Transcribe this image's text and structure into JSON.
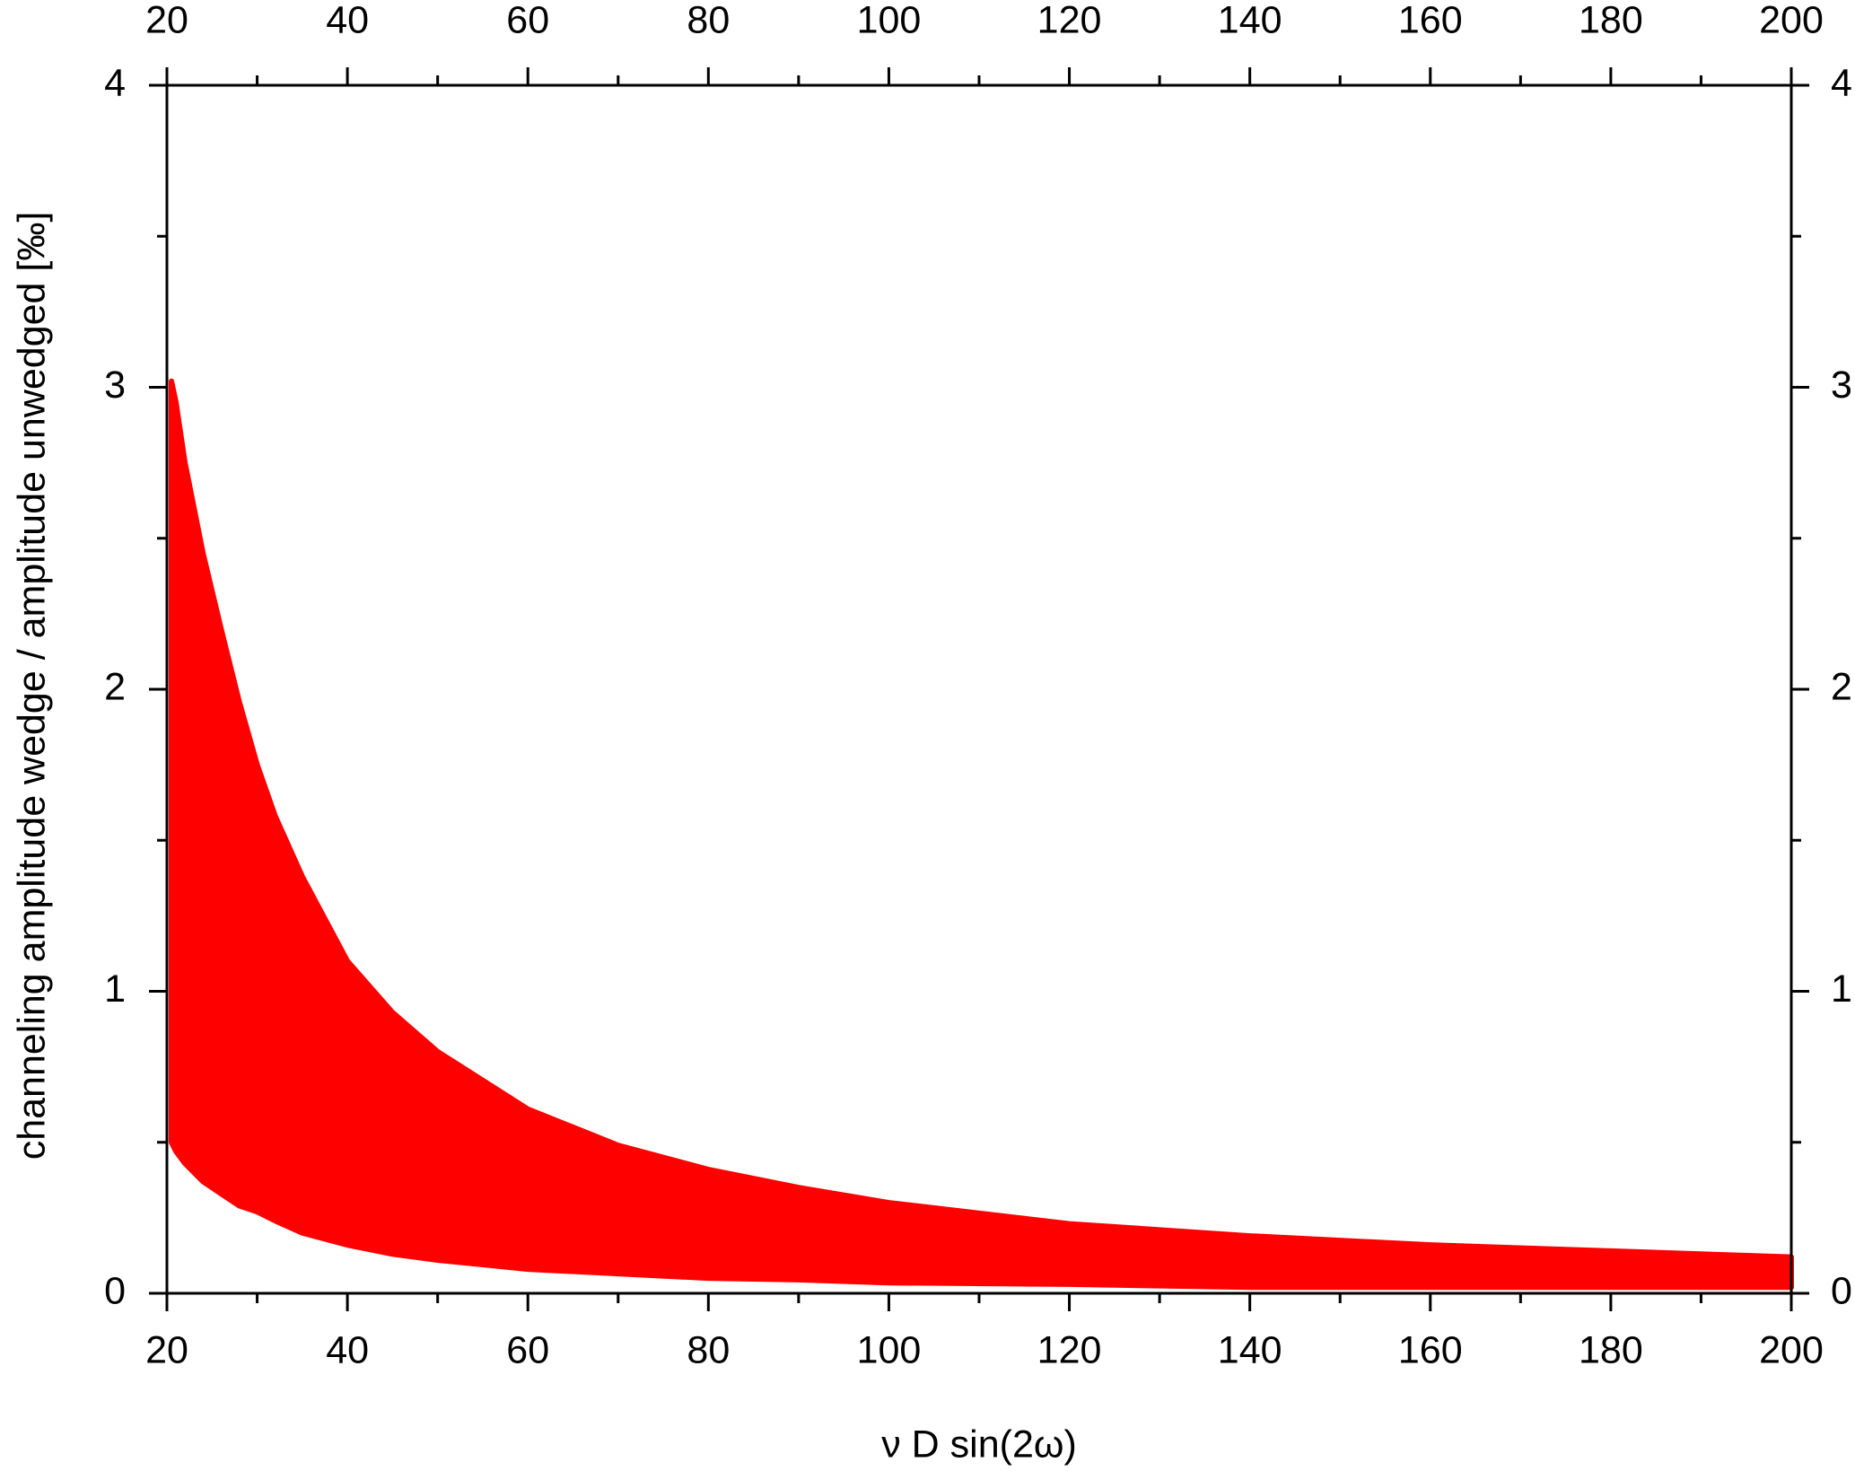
{
  "chart_data": {
    "type": "band",
    "x_label": "ν D sin(2ω)",
    "y_label": "channeling amplitude wedge / amplitude unwedged [‰]",
    "x": [
      20.5,
      21,
      22,
      24,
      26,
      28,
      30,
      32,
      35,
      40,
      45,
      50,
      60,
      70,
      80,
      90,
      100,
      120,
      140,
      160,
      180,
      200
    ],
    "series": [
      {
        "color": "#ff0000",
        "values": [
          3.02,
          2.95,
          2.75,
          2.45,
          2.2,
          1.96,
          1.75,
          1.58,
          1.38,
          1.1,
          0.93,
          0.8,
          0.61,
          0.49,
          0.41,
          0.35,
          0.3,
          0.23,
          0.19,
          0.16,
          0.14,
          0.12
        ]
      },
      {
        "color": "#ff0000",
        "values": [
          0.5,
          0.47,
          0.43,
          0.37,
          0.33,
          0.29,
          0.27,
          0.24,
          0.2,
          0.16,
          0.13,
          0.11,
          0.08,
          0.065,
          0.05,
          0.045,
          0.035,
          0.03,
          0.02,
          0.02,
          0.02,
          0.02
        ]
      }
    ],
    "xlim": [
      20,
      200
    ],
    "xticks": [
      20,
      40,
      60,
      80,
      100,
      120,
      140,
      160,
      180,
      200
    ],
    "ylim": [
      0,
      4
    ],
    "yticks": [
      0,
      1,
      2,
      3,
      4
    ],
    "mirror_axes": true
  }
}
